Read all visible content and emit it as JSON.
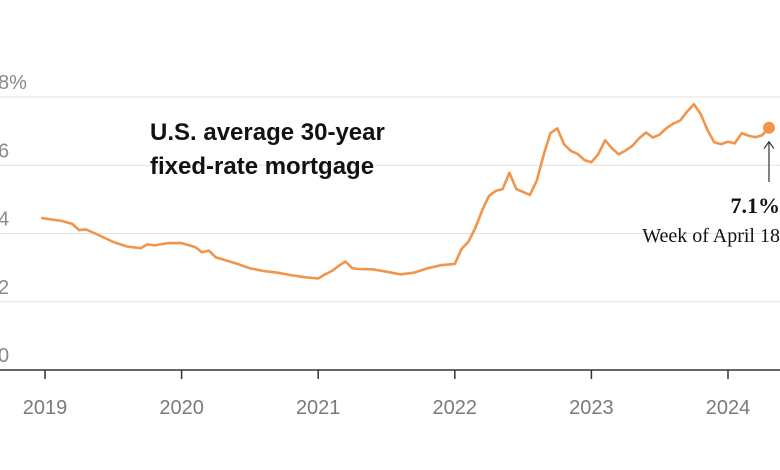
{
  "chart_data": {
    "type": "line",
    "title_lines": [
      "U.S. average 30-year",
      "fixed-rate mortgage"
    ],
    "xlabel": "",
    "ylabel": "",
    "ylim": [
      0,
      8
    ],
    "yticks": [
      {
        "value": 0,
        "label": "0"
      },
      {
        "value": 2,
        "label": "2"
      },
      {
        "value": 4,
        "label": "4"
      },
      {
        "value": 6,
        "label": "6"
      },
      {
        "value": 8,
        "label": "8%"
      }
    ],
    "xticks": [
      {
        "value": 2019,
        "label": "2019"
      },
      {
        "value": 2020,
        "label": "2020"
      },
      {
        "value": 2021,
        "label": "2021"
      },
      {
        "value": 2022,
        "label": "2022"
      },
      {
        "value": 2023,
        "label": "2023"
      },
      {
        "value": 2024,
        "label": "2024"
      }
    ],
    "grid": true,
    "line_color": "#F0954B",
    "series": [
      {
        "x": [
          2018.98,
          2019.05,
          2019.12,
          2019.2,
          2019.25,
          2019.3,
          2019.4,
          2019.5,
          2019.6,
          2019.7,
          2019.75,
          2019.8,
          2019.9,
          2020.0,
          2020.1,
          2020.15,
          2020.2,
          2020.25,
          2020.3,
          2020.4,
          2020.5,
          2020.6,
          2020.7,
          2020.8,
          2020.9,
          2021.0,
          2021.05,
          2021.1,
          2021.15,
          2021.2,
          2021.25,
          2021.3,
          2021.4,
          2021.5,
          2021.6,
          2021.7,
          2021.8,
          2021.9,
          2022.0,
          2022.05,
          2022.1,
          2022.15,
          2022.2,
          2022.25,
          2022.3,
          2022.35,
          2022.4,
          2022.45,
          2022.5,
          2022.55,
          2022.6,
          2022.65,
          2022.7,
          2022.75,
          2022.8,
          2022.85,
          2022.9,
          2022.95,
          2023.0,
          2023.05,
          2023.1,
          2023.15,
          2023.2,
          2023.25,
          2023.3,
          2023.35,
          2023.4,
          2023.45,
          2023.5,
          2023.55,
          2023.6,
          2023.65,
          2023.7,
          2023.75,
          2023.8,
          2023.85,
          2023.9,
          2023.95,
          2024.0,
          2024.05,
          2024.1,
          2024.15,
          2024.2,
          2024.25,
          2024.3
        ],
        "y": [
          4.45,
          4.41,
          4.37,
          4.28,
          4.1,
          4.12,
          3.94,
          3.75,
          3.62,
          3.57,
          3.68,
          3.65,
          3.72,
          3.72,
          3.6,
          3.45,
          3.5,
          3.3,
          3.24,
          3.12,
          2.98,
          2.9,
          2.85,
          2.78,
          2.72,
          2.68,
          2.8,
          2.9,
          3.05,
          3.18,
          2.98,
          2.96,
          2.95,
          2.88,
          2.8,
          2.85,
          2.98,
          3.07,
          3.11,
          3.55,
          3.76,
          4.16,
          4.67,
          5.1,
          5.25,
          5.3,
          5.78,
          5.3,
          5.22,
          5.13,
          5.55,
          6.3,
          6.94,
          7.08,
          6.61,
          6.42,
          6.33,
          6.15,
          6.09,
          6.32,
          6.73,
          6.5,
          6.32,
          6.43,
          6.57,
          6.79,
          6.96,
          6.81,
          6.9,
          7.09,
          7.22,
          7.31,
          7.57,
          7.79,
          7.5,
          7.03,
          6.67,
          6.62,
          6.69,
          6.64,
          6.94,
          6.87,
          6.82,
          6.88,
          7.1
        ]
      }
    ],
    "callout": {
      "x": 2024.3,
      "y": 7.1,
      "value": "7.1%",
      "label": "Week of April 18"
    }
  }
}
